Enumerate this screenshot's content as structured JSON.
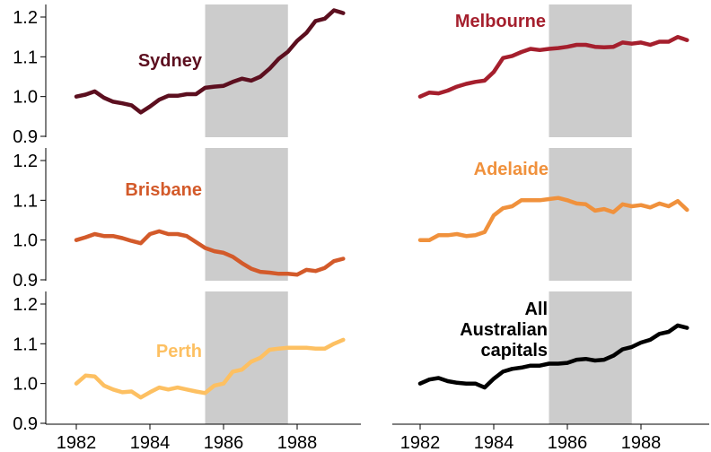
{
  "chart_data": {
    "type": "line",
    "layout": "3 rows x 2 columns small multiples, shared axes",
    "x_ticks": [
      "1982",
      "1984",
      "1986",
      "1988"
    ],
    "x_tick_values": [
      1982,
      1984,
      1986,
      1988
    ],
    "xlim": [
      1981.4,
      1989.8
    ],
    "y_ticks": [
      "0.9",
      "1.0",
      "1.1",
      "1.2"
    ],
    "y_tick_values": [
      0.9,
      1.0,
      1.1,
      1.2
    ],
    "ylim": [
      0.9,
      1.23
    ],
    "shaded_period": [
      1985.5,
      1987.75
    ],
    "shade_color": "#cccccc",
    "grid": false,
    "x": [
      1982.0,
      1982.25,
      1982.5,
      1982.75,
      1983.0,
      1983.25,
      1983.5,
      1983.75,
      1984.0,
      1984.25,
      1984.5,
      1984.75,
      1985.0,
      1985.25,
      1985.5,
      1985.75,
      1986.0,
      1986.25,
      1986.5,
      1986.75,
      1987.0,
      1987.25,
      1987.5,
      1987.75,
      1988.0,
      1988.25,
      1988.5,
      1988.75,
      1989.0,
      1989.25
    ],
    "series": [
      {
        "name": "Sydney",
        "color": "#5c0f1f",
        "label_lines": [
          "Sydney"
        ],
        "values": [
          1.0,
          1.005,
          1.013,
          0.997,
          0.987,
          0.983,
          0.978,
          0.96,
          0.975,
          0.992,
          1.002,
          1.002,
          1.006,
          1.006,
          1.022,
          1.025,
          1.027,
          1.037,
          1.045,
          1.04,
          1.05,
          1.07,
          1.095,
          1.113,
          1.14,
          1.16,
          1.19,
          1.196,
          1.217,
          1.21
        ]
      },
      {
        "name": "Melbourne",
        "color": "#a51f2d",
        "label_lines": [
          "Melbourne"
        ],
        "values": [
          1.0,
          1.01,
          1.008,
          1.015,
          1.025,
          1.032,
          1.037,
          1.04,
          1.062,
          1.097,
          1.102,
          1.112,
          1.12,
          1.117,
          1.12,
          1.122,
          1.125,
          1.13,
          1.13,
          1.125,
          1.124,
          1.125,
          1.136,
          1.133,
          1.136,
          1.13,
          1.138,
          1.138,
          1.15,
          1.142
        ]
      },
      {
        "name": "Brisbane",
        "color": "#d35a2a",
        "label_lines": [
          "Brisbane"
        ],
        "values": [
          1.0,
          1.007,
          1.015,
          1.01,
          1.01,
          1.005,
          0.998,
          0.992,
          1.015,
          1.022,
          1.015,
          1.015,
          1.01,
          0.995,
          0.98,
          0.972,
          0.968,
          0.958,
          0.942,
          0.928,
          0.92,
          0.918,
          0.915,
          0.915,
          0.913,
          0.925,
          0.922,
          0.93,
          0.947,
          0.953
        ]
      },
      {
        "name": "Adelaide",
        "color": "#f0913c",
        "label_lines": [
          "Adelaide"
        ],
        "values": [
          1.0,
          1.0,
          1.012,
          1.012,
          1.015,
          1.01,
          1.012,
          1.02,
          1.062,
          1.08,
          1.085,
          1.1,
          1.1,
          1.1,
          1.103,
          1.106,
          1.1,
          1.092,
          1.09,
          1.074,
          1.078,
          1.07,
          1.09,
          1.085,
          1.088,
          1.082,
          1.092,
          1.085,
          1.098,
          1.076
        ]
      },
      {
        "name": "Perth",
        "color": "#fdc062",
        "label_lines": [
          "Perth"
        ],
        "values": [
          1.0,
          1.02,
          1.018,
          0.995,
          0.985,
          0.978,
          0.98,
          0.965,
          0.978,
          0.99,
          0.985,
          0.99,
          0.985,
          0.98,
          0.976,
          0.995,
          1.0,
          1.03,
          1.035,
          1.055,
          1.065,
          1.085,
          1.088,
          1.09,
          1.09,
          1.09,
          1.088,
          1.088,
          1.1,
          1.11
        ]
      },
      {
        "name": "All Australian capitals",
        "color": "#000000",
        "label_lines": [
          "All",
          "Australian",
          "capitals"
        ],
        "values": [
          1.0,
          1.01,
          1.014,
          1.006,
          1.002,
          1.0,
          1.0,
          0.99,
          1.012,
          1.03,
          1.037,
          1.04,
          1.045,
          1.045,
          1.05,
          1.05,
          1.052,
          1.06,
          1.062,
          1.058,
          1.06,
          1.07,
          1.086,
          1.092,
          1.103,
          1.11,
          1.125,
          1.13,
          1.146,
          1.14
        ]
      }
    ]
  }
}
